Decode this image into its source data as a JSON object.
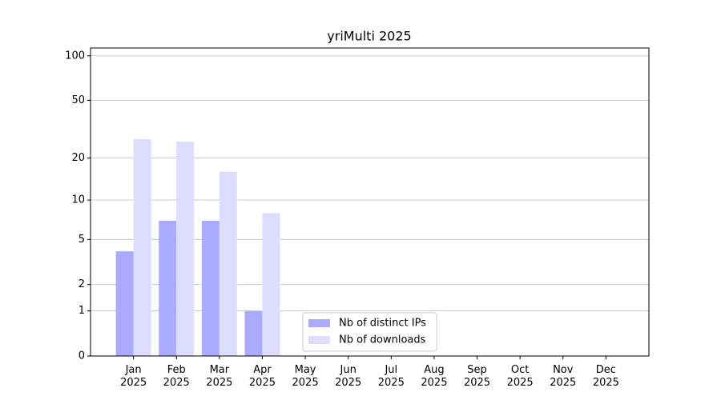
{
  "chart_data": {
    "type": "bar",
    "title": "yriMulti 2025",
    "categories": [
      "Jan\n2025",
      "Feb\n2025",
      "Mar\n2025",
      "Apr\n2025",
      "May\n2025",
      "Jun\n2025",
      "Jul\n2025",
      "Aug\n2025",
      "Sep\n2025",
      "Oct\n2025",
      "Nov\n2025",
      "Dec\n2025"
    ],
    "series": [
      {
        "name": "Nb of distinct IPs",
        "color": "#aaaaff",
        "values": [
          4,
          7,
          7,
          1,
          0,
          0,
          0,
          0,
          0,
          0,
          0,
          0
        ]
      },
      {
        "name": "Nb of downloads",
        "color": "#ddddff",
        "values": [
          27,
          26,
          16,
          8,
          0,
          0,
          0,
          0,
          0,
          0,
          0,
          0
        ]
      }
    ],
    "yscale": "log1p",
    "ylim": [
      0,
      113
    ],
    "yticks": [
      0,
      1,
      2,
      5,
      10,
      20,
      50,
      100
    ],
    "grid": true,
    "legend": "lower center"
  }
}
